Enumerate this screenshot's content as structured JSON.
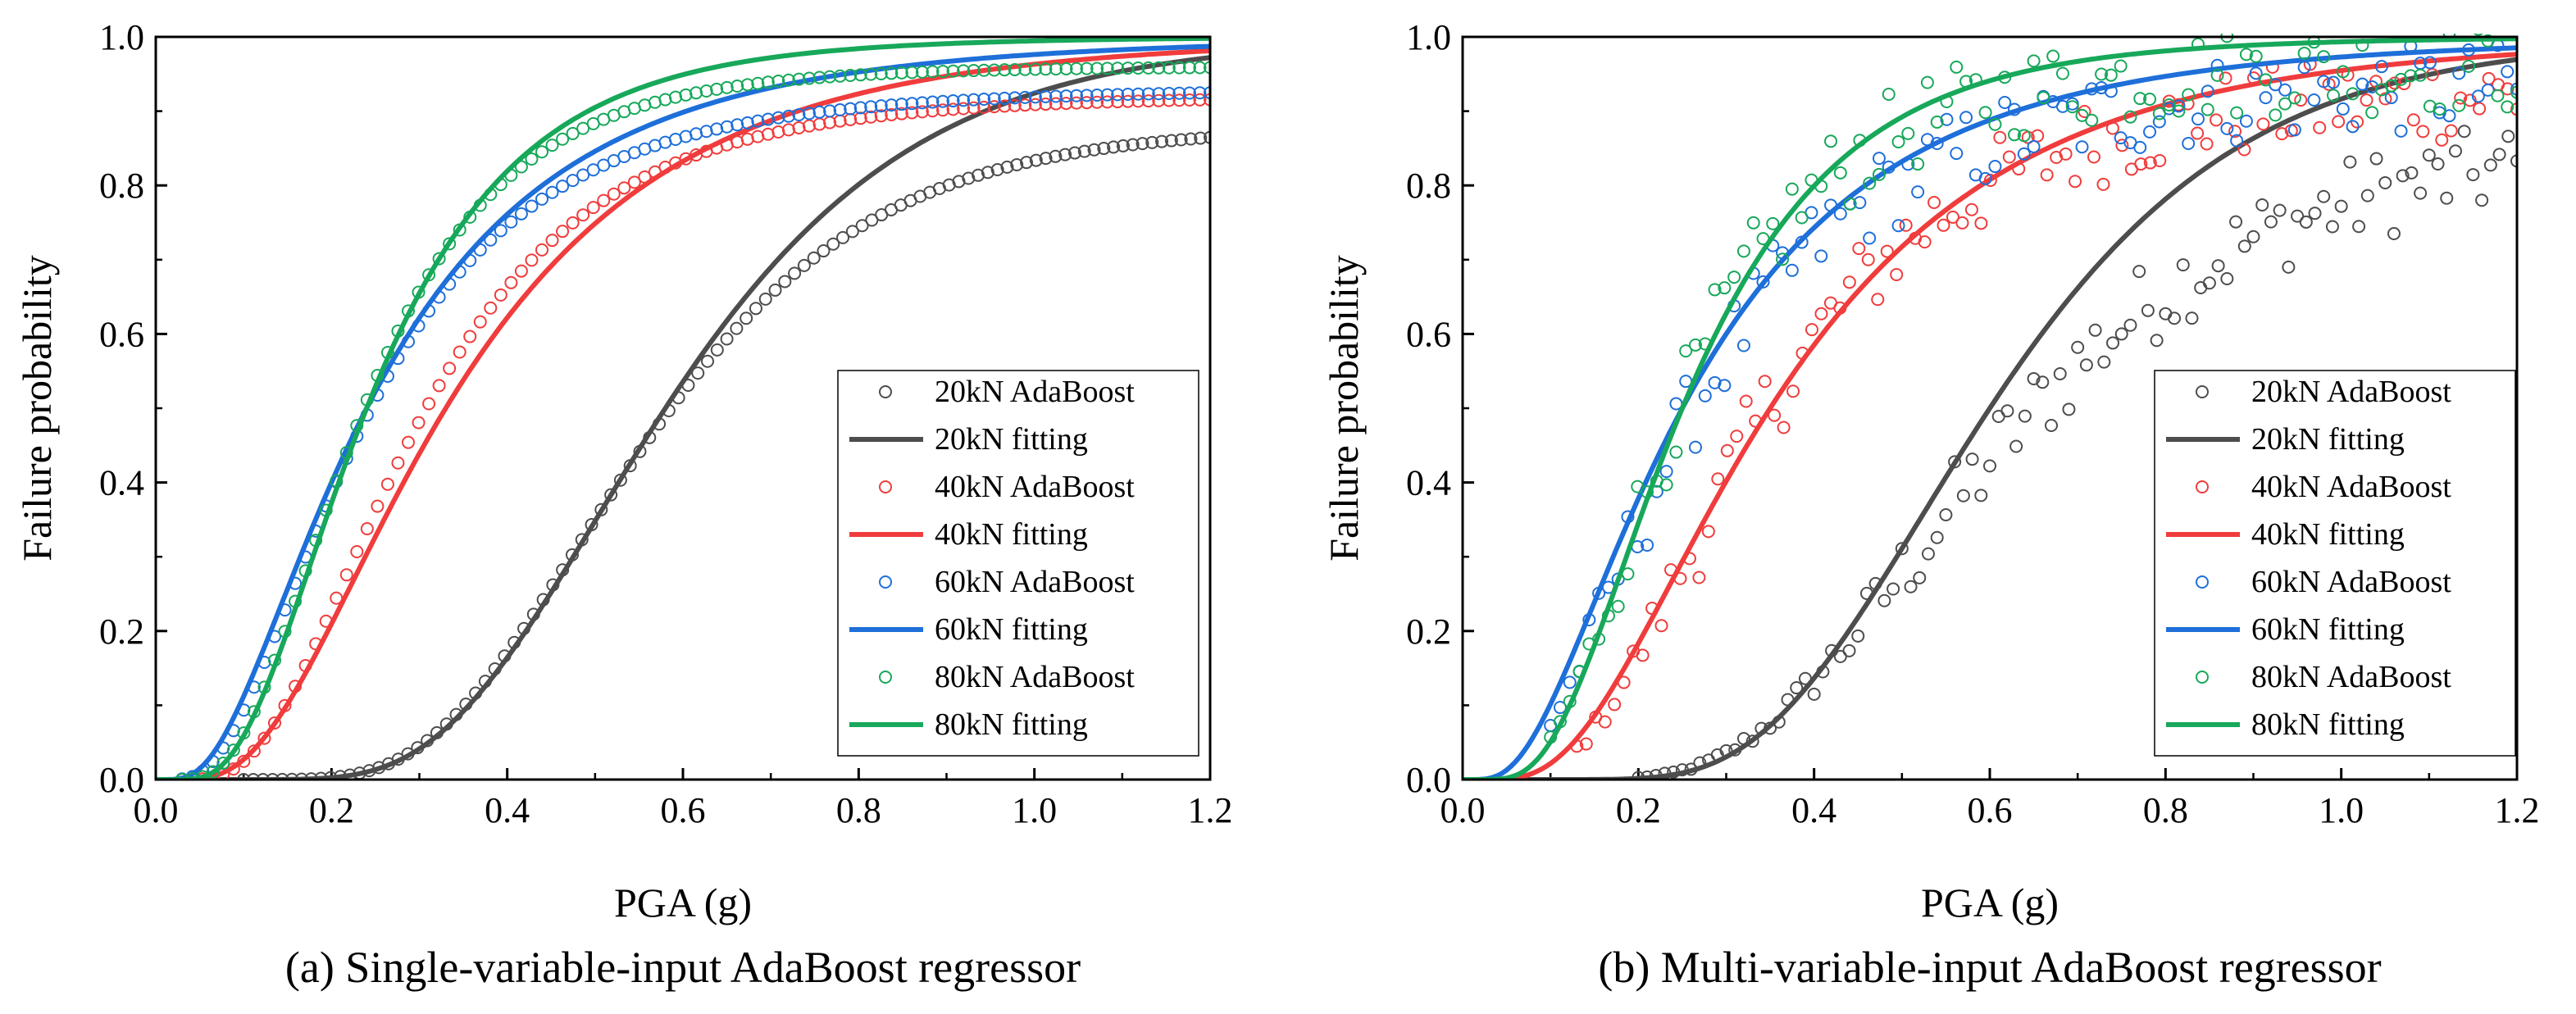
{
  "figure": {
    "panels": [
      {
        "caption": "(a) Single-variable-input AdaBoost regressor"
      },
      {
        "caption": "(b) Multi-variable-input AdaBoost regressor"
      }
    ]
  },
  "chart_data": [
    {
      "type": "scatter",
      "title": "",
      "xlabel": "PGA (g)",
      "ylabel": "Failure probability",
      "xlim": [
        0,
        1.2
      ],
      "ylim": [
        0,
        1.0
      ],
      "xticks": [
        "0.0",
        "0.2",
        "0.4",
        "0.6",
        "0.8",
        "1.0",
        "1.2"
      ],
      "yticks": [
        "0.0",
        "0.2",
        "0.4",
        "0.6",
        "0.8",
        "1.0"
      ],
      "legend_position": "bottom-right",
      "noise": 0,
      "series": [
        {
          "load": 20,
          "scatter_name": "20kN AdaBoost",
          "fit_name": "20kN fitting",
          "color": "#4d4d4d",
          "median": 0.58,
          "beta": 0.38,
          "dot_median": 0.55,
          "dot_beta": 0.37,
          "dot_cap": 0.88,
          "dot_start": 0.1
        },
        {
          "load": 40,
          "scatter_name": "40kN AdaBoost",
          "fit_name": "40kN fitting",
          "color": "#f03c3c",
          "median": 0.33,
          "beta": 0.62,
          "dot_median": 0.29,
          "dot_beta": 0.55,
          "dot_cap": 0.92,
          "dot_start": 0.03
        },
        {
          "load": 60,
          "scatter_name": "60kN AdaBoost",
          "fit_name": "60kN fitting",
          "color": "#1e6fd9",
          "median": 0.24,
          "beta": 0.72,
          "dot_median": 0.23,
          "dot_beta": 0.65,
          "dot_cap": 0.93,
          "dot_start": 0.03
        },
        {
          "load": 80,
          "scatter_name": "80kN AdaBoost",
          "fit_name": "80kN fitting",
          "color": "#17a85a",
          "median": 0.24,
          "beta": 0.56,
          "dot_median": 0.23,
          "dot_beta": 0.55,
          "dot_cap": 0.96,
          "dot_start": 0.03
        }
      ]
    },
    {
      "type": "scatter",
      "title": "",
      "xlabel": "PGA (g)",
      "ylabel": "Failure probability",
      "xlim": [
        0,
        1.2
      ],
      "ylim": [
        0,
        1.0
      ],
      "xticks": [
        "0.0",
        "0.2",
        "0.4",
        "0.6",
        "0.8",
        "1.0",
        "1.2"
      ],
      "yticks": [
        "0.0",
        "0.2",
        "0.4",
        "0.6",
        "0.8",
        "1.0"
      ],
      "legend_position": "bottom-right",
      "noise": 1,
      "series": [
        {
          "load": 20,
          "scatter_name": "20kN AdaBoost",
          "fit_name": "20kN fitting",
          "color": "#4d4d4d",
          "median": 0.6,
          "beta": 0.37,
          "dot_median": 0.6,
          "dot_beta": 0.4,
          "dot_cap": 0.86,
          "dot_start": 0.2
        },
        {
          "load": 40,
          "scatter_name": "40kN AdaBoost",
          "fit_name": "40kN fitting",
          "color": "#f03c3c",
          "median": 0.35,
          "beta": 0.62,
          "dot_median": 0.33,
          "dot_beta": 0.55,
          "dot_cap": 0.93,
          "dot_start": 0.13
        },
        {
          "load": 60,
          "scatter_name": "60kN AdaBoost",
          "fit_name": "60kN fitting",
          "color": "#1e6fd9",
          "median": 0.25,
          "beta": 0.72,
          "dot_median": 0.25,
          "dot_beta": 0.65,
          "dot_cap": 0.94,
          "dot_start": 0.1
        },
        {
          "load": 80,
          "scatter_name": "80kN AdaBoost",
          "fit_name": "80kN fitting",
          "color": "#17a85a",
          "median": 0.25,
          "beta": 0.56,
          "dot_median": 0.24,
          "dot_beta": 0.55,
          "dot_cap": 0.96,
          "dot_start": 0.1
        }
      ]
    }
  ]
}
